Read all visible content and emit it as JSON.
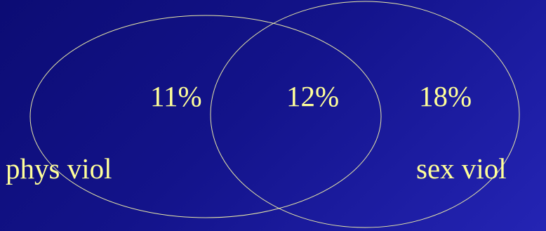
{
  "diagram": {
    "type": "venn",
    "colors": {
      "text": "#ffff99",
      "outline": "#e8e8a8"
    },
    "sets": [
      {
        "label": "phys viol"
      },
      {
        "label": "sex viol"
      }
    ],
    "regions": {
      "left_only": "11%",
      "overlap": "12%",
      "right_only": "18%"
    }
  }
}
